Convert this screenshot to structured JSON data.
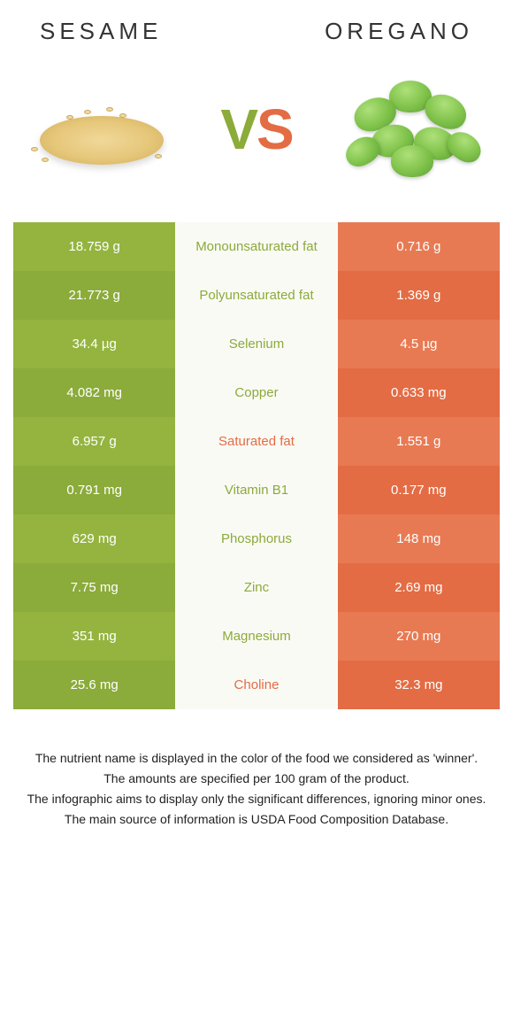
{
  "header": {
    "left": "SESAME",
    "right": "OREGANO"
  },
  "vs": {
    "v": "V",
    "s": "S"
  },
  "colors": {
    "left_a": "#94b43f",
    "left_b": "#8bab3a",
    "mid": "#fafaf5",
    "right_a": "#e87a53",
    "right_b": "#e36c44",
    "winner_left": "#8bab3a",
    "winner_right": "#e36c44"
  },
  "rows": [
    {
      "left": "18.759 g",
      "label": "Monounsaturated fat",
      "right": "0.716 g",
      "winner": "left"
    },
    {
      "left": "21.773 g",
      "label": "Polyunsaturated fat",
      "right": "1.369 g",
      "winner": "left"
    },
    {
      "left": "34.4 µg",
      "label": "Selenium",
      "right": "4.5 µg",
      "winner": "left"
    },
    {
      "left": "4.082 mg",
      "label": "Copper",
      "right": "0.633 mg",
      "winner": "left"
    },
    {
      "left": "6.957 g",
      "label": "Saturated fat",
      "right": "1.551 g",
      "winner": "right"
    },
    {
      "left": "0.791 mg",
      "label": "Vitamin B1",
      "right": "0.177 mg",
      "winner": "left"
    },
    {
      "left": "629 mg",
      "label": "Phosphorus",
      "right": "148 mg",
      "winner": "left"
    },
    {
      "left": "7.75 mg",
      "label": "Zinc",
      "right": "2.69 mg",
      "winner": "left"
    },
    {
      "left": "351 mg",
      "label": "Magnesium",
      "right": "270 mg",
      "winner": "left"
    },
    {
      "left": "25.6 mg",
      "label": "Choline",
      "right": "32.3 mg",
      "winner": "right"
    }
  ],
  "footnotes": [
    "The nutrient name is displayed in the color of the food we considered as 'winner'.",
    "The amounts are specified per 100 gram of the product.",
    "The infographic aims to display only the significant differences, ignoring minor ones.",
    "The main source of information is USDA Food Composition Database."
  ]
}
